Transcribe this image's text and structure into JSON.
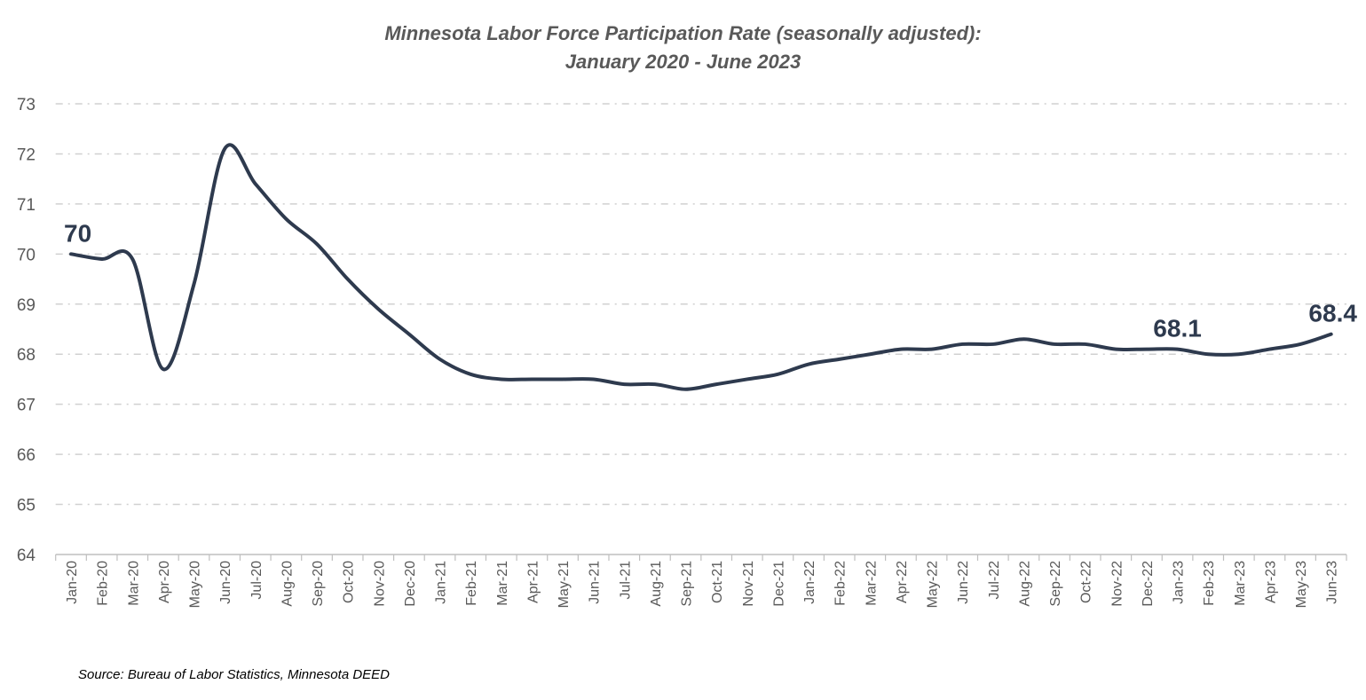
{
  "chart_data": {
    "type": "line",
    "title": [
      "Minnesota Labor Force Participation Rate (seasonally adjusted):",
      "January 2020 - June 2023"
    ],
    "source": "Source: Bureau of Labor Statistics, Minnesota DEED",
    "xlabel": "",
    "ylabel": "",
    "ylim": [
      64,
      73
    ],
    "yticks": [
      64,
      65,
      66,
      67,
      68,
      69,
      70,
      71,
      72,
      73
    ],
    "grid": true,
    "line_color": "#2E3A4E",
    "categories": [
      "Jan-20",
      "Feb-20",
      "Mar-20",
      "Apr-20",
      "May-20",
      "Jun-20",
      "Jul-20",
      "Aug-20",
      "Sep-20",
      "Oct-20",
      "Nov-20",
      "Dec-20",
      "Jan-21",
      "Feb-21",
      "Mar-21",
      "Apr-21",
      "May-21",
      "Jun-21",
      "Jul-21",
      "Aug-21",
      "Sep-21",
      "Oct-21",
      "Nov-21",
      "Dec-21",
      "Jan-22",
      "Feb-22",
      "Mar-22",
      "Apr-22",
      "May-22",
      "Jun-22",
      "Jul-22",
      "Aug-22",
      "Sep-22",
      "Oct-22",
      "Nov-22",
      "Dec-22",
      "Jan-23",
      "Feb-23",
      "Mar-23",
      "Apr-23",
      "May-23",
      "Jun-23"
    ],
    "series": [
      {
        "name": "Labor Force Participation Rate",
        "values": [
          70.0,
          69.9,
          69.9,
          67.7,
          69.4,
          72.1,
          71.4,
          70.7,
          70.2,
          69.5,
          68.9,
          68.4,
          67.9,
          67.6,
          67.5,
          67.5,
          67.5,
          67.5,
          67.4,
          67.4,
          67.3,
          67.4,
          67.5,
          67.6,
          67.8,
          67.9,
          68.0,
          68.1,
          68.1,
          68.2,
          68.2,
          68.3,
          68.2,
          68.2,
          68.1,
          68.1,
          68.1,
          68.0,
          68.0,
          68.1,
          68.2,
          68.4
        ]
      }
    ],
    "annotations": [
      {
        "category": "Jan-20",
        "text": "70"
      },
      {
        "category": "Jan-23",
        "text": "68.1"
      },
      {
        "category": "Jun-23",
        "text": "68.4"
      }
    ]
  }
}
